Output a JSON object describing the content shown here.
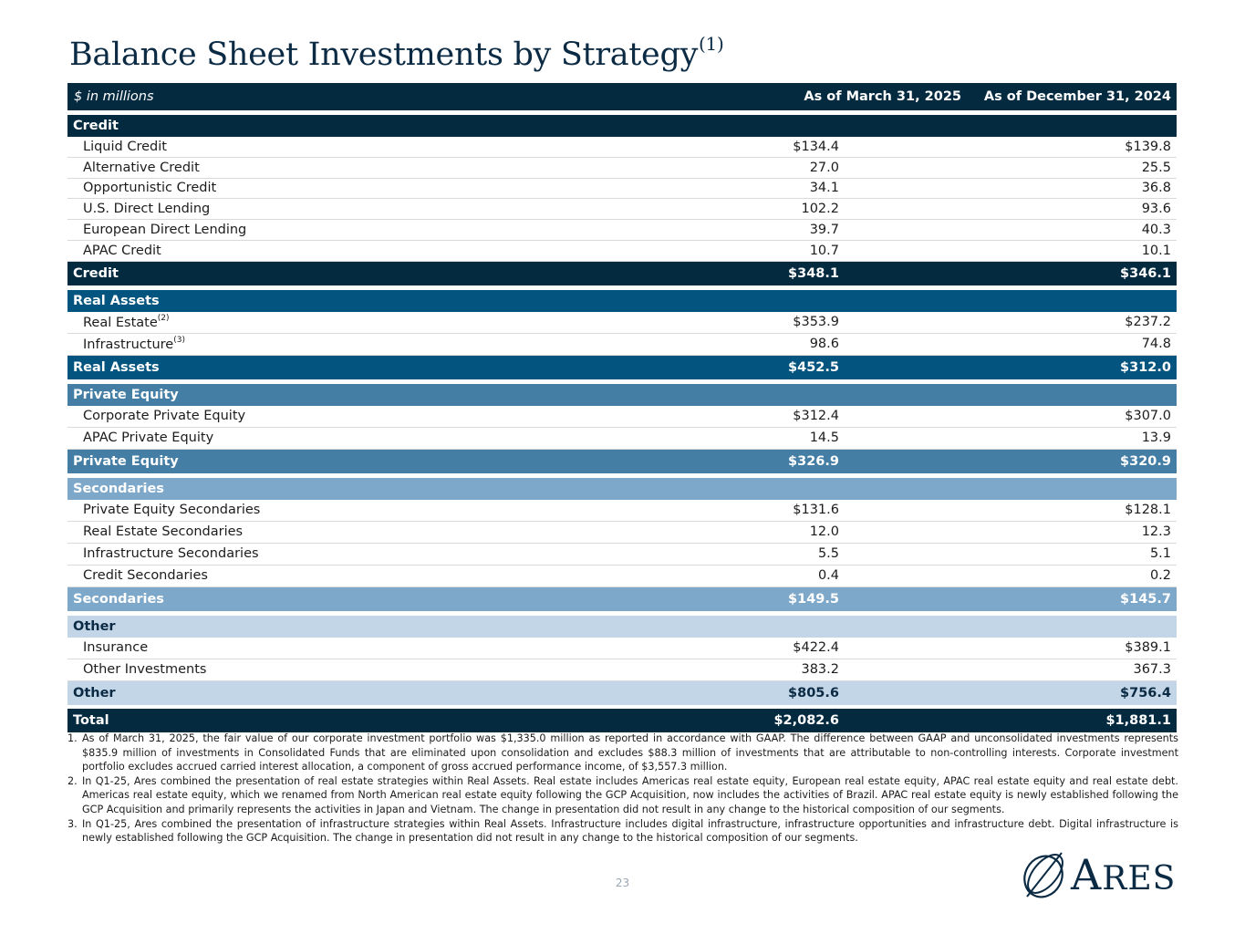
{
  "title": "Balance Sheet Investments by Strategy",
  "title_footnote": "(1)",
  "header": {
    "unit_label": "$ in millions",
    "col1": "As of March 31, 2025",
    "col2": "As of December 31, 2024"
  },
  "sections": {
    "credit": {
      "heading": "Credit",
      "items": [
        {
          "label": "Liquid Credit",
          "v1": "$134.4",
          "v2": "$139.8"
        },
        {
          "label": "Alternative Credit",
          "v1": "27.0",
          "v2": "25.5"
        },
        {
          "label": "Opportunistic Credit",
          "v1": "34.1",
          "v2": "36.8"
        },
        {
          "label": "U.S. Direct Lending",
          "v1": "102.2",
          "v2": "93.6"
        },
        {
          "label": "European Direct Lending",
          "v1": "39.7",
          "v2": "40.3"
        },
        {
          "label": "APAC Credit",
          "v1": "10.7",
          "v2": "10.1"
        }
      ],
      "total": {
        "label": "Credit",
        "v1": "$348.1",
        "v2": "$346.1"
      }
    },
    "real_assets": {
      "heading": "Real Assets",
      "items": [
        {
          "label": "Real Estate",
          "sup": "(2)",
          "v1": "$353.9",
          "v2": "$237.2"
        },
        {
          "label": "Infrastructure",
          "sup": "(3)",
          "v1": "98.6",
          "v2": "74.8"
        }
      ],
      "total": {
        "label": "Real Assets",
        "v1": "$452.5",
        "v2": "$312.0"
      }
    },
    "private_equity": {
      "heading": "Private Equity",
      "items": [
        {
          "label": "Corporate Private Equity",
          "v1": "$312.4",
          "v2": "$307.0"
        },
        {
          "label": "APAC Private Equity",
          "v1": "14.5",
          "v2": "13.9"
        }
      ],
      "total": {
        "label": "Private Equity",
        "v1": "$326.9",
        "v2": "$320.9"
      }
    },
    "secondaries": {
      "heading": "Secondaries",
      "items": [
        {
          "label": "Private Equity Secondaries",
          "v1": "$131.6",
          "v2": "$128.1"
        },
        {
          "label": "Real Estate Secondaries",
          "v1": "12.0",
          "v2": "12.3"
        },
        {
          "label": "Infrastructure Secondaries",
          "v1": "5.5",
          "v2": "5.1"
        },
        {
          "label": "Credit Secondaries",
          "v1": "0.4",
          "v2": "0.2"
        }
      ],
      "total": {
        "label": "Secondaries",
        "v1": "$149.5",
        "v2": "$145.7"
      }
    },
    "other": {
      "heading": "Other",
      "items": [
        {
          "label": "Insurance",
          "v1": "$422.4",
          "v2": "$389.1"
        },
        {
          "label": "Other Investments",
          "v1": "383.2",
          "v2": "367.3"
        }
      ],
      "total": {
        "label": "Other",
        "v1": "$805.6",
        "v2": "$756.4"
      }
    }
  },
  "grand_total": {
    "label": "Total",
    "v1": "$2,082.6",
    "v2": "$1,881.1"
  },
  "footnotes": [
    {
      "num": "1.",
      "text": "As of March 31, 2025, the fair value of our corporate investment portfolio was $1,335.0 million as reported in accordance with GAAP. The difference between GAAP and unconsolidated investments represents $835.9 million of investments in Consolidated Funds that are eliminated upon consolidation and excludes $88.3 million of investments that are attributable to non-controlling interests. Corporate investment portfolio excludes accrued carried interest allocation, a component of gross accrued performance income, of $3,557.3 million."
    },
    {
      "num": "2.",
      "text": "In Q1-25, Ares combined the presentation of real estate strategies within Real Assets. Real estate includes Americas real estate equity, European real estate equity, APAC real estate equity and real estate debt. Americas real estate equity, which we renamed from North American real estate equity following the GCP Acquisition, now includes the activities of Brazil. APAC real estate equity is newly established following the GCP Acquisition and primarily represents the activities in Japan and Vietnam. The change in presentation did not result in any change to the historical composition of our segments."
    },
    {
      "num": "3.",
      "text": "In Q1-25, Ares combined the presentation of infrastructure strategies within Real Assets. Infrastructure includes digital infrastructure, infrastructure opportunities and infrastructure debt. Digital infrastructure is newly established following the GCP Acquisition. The change in presentation did not result in any change to the historical composition of our segments."
    }
  ],
  "page_number": "23",
  "logo_text": {
    "first": "A",
    "rest": "RES"
  },
  "colors": {
    "navy": "#042a40",
    "real_assets": "#03547e",
    "private_equity": "#447ea5",
    "secondaries": "#7ea8c9",
    "other": "#c3d6e7"
  }
}
